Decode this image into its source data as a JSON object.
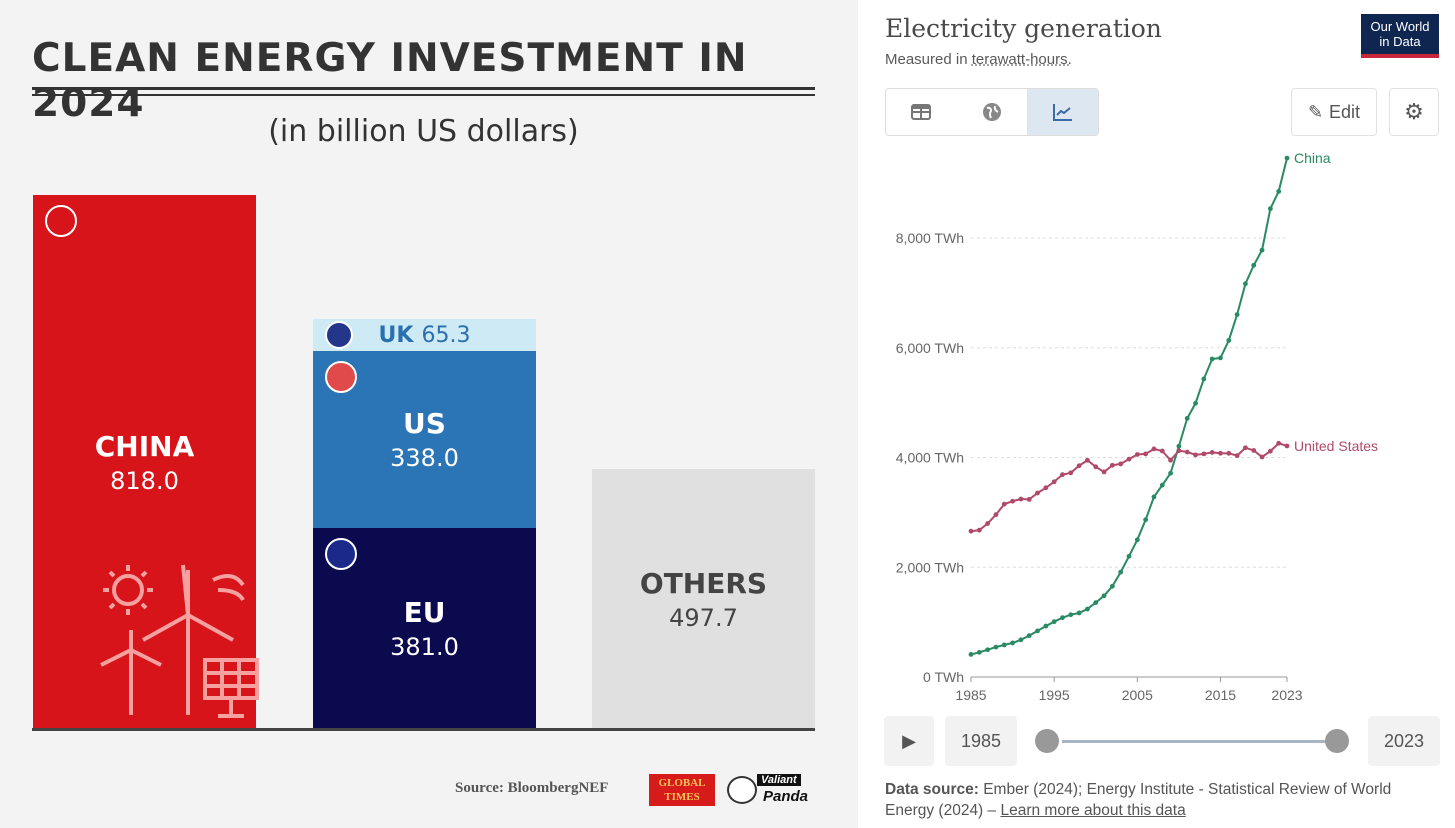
{
  "chart_data": [
    {
      "type": "bar",
      "title": "CLEAN ENERGY INVESTMENT IN 2024",
      "subtitle": "(in billion US dollars)",
      "unit": "billion US dollars",
      "categories": [
        "CHINA",
        "EU / US / UK",
        "OTHERS"
      ],
      "stacked": true,
      "bars": [
        {
          "name": "CHINA",
          "value": "818.0",
          "num": 818.0,
          "color": "#d7141a"
        },
        {
          "name": "EU",
          "value": "381.0",
          "num": 381.0,
          "color": "#0c0a4f"
        },
        {
          "name": "US",
          "value": "338.0",
          "num": 338.0,
          "color": "#2b74b5"
        },
        {
          "name": "UK",
          "value": "65.3",
          "num": 65.3,
          "color": "#cdeaf5"
        },
        {
          "name": "OTHERS",
          "value": "497.7",
          "num": 497.7,
          "color": "#e0e0e0"
        }
      ],
      "source": "Source: BloombergNEF",
      "logos": [
        "GLOBAL TIMES",
        "Valiant Panda"
      ]
    },
    {
      "type": "line",
      "title": "Electricity generation",
      "subtitle_prefix": "Measured in ",
      "subtitle_unit": "terawatt-hours.",
      "ylabel": "TWh",
      "ylim": [
        0,
        9500
      ],
      "yticks": [
        "0 TWh",
        "2,000 TWh",
        "4,000 TWh",
        "6,000 TWh",
        "8,000 TWh"
      ],
      "ytick_values": [
        0,
        2000,
        4000,
        6000,
        8000
      ],
      "xticks": [
        "1985",
        "1995",
        "2005",
        "2015",
        "2023"
      ],
      "xtick_values": [
        1985,
        1995,
        2005,
        2015,
        2023
      ],
      "x_start": 1985,
      "grid": true,
      "series": [
        {
          "name": "China",
          "color": "#2a8a63",
          "values": [
            411,
            449,
            497,
            545,
            585,
            621,
            678,
            754,
            840,
            928,
            1008,
            1081,
            1135,
            1167,
            1239,
            1356,
            1480,
            1654,
            1911,
            2200,
            2500,
            2866,
            3282,
            3496,
            3714,
            4207,
            4713,
            4988,
            5432,
            5795,
            5815,
            6133,
            6604,
            7166,
            7503,
            7779,
            8534,
            8849,
            9456
          ]
        },
        {
          "name": "United States",
          "color": "#b04a68",
          "values": [
            2657,
            2676,
            2797,
            2959,
            3150,
            3203,
            3243,
            3237,
            3353,
            3448,
            3558,
            3687,
            3721,
            3850,
            3950,
            3830,
            3737,
            3858,
            3883,
            3970,
            4055,
            4065,
            4157,
            4119,
            3950,
            4125,
            4100,
            4048,
            4066,
            4093,
            4077,
            4076,
            4034,
            4178,
            4128,
            4009,
            4115,
            4259,
            4210
          ]
        }
      ]
    }
  ],
  "owid": {
    "logo": "Our World in Data",
    "edit_label": "Edit",
    "start_year": "1985",
    "end_year": "2023",
    "source_label": "Data source:",
    "source_text": " Ember (2024); Energy Institute - Statistical Review of World Energy (2024) – ",
    "learn_more": "Learn more about this data"
  }
}
